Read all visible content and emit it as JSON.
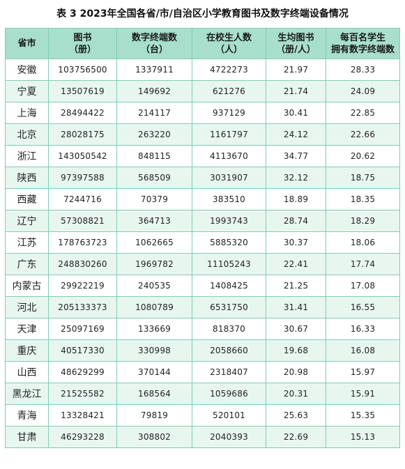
{
  "title": "表 3  2023年全国各省/市/自治区小学教育图书及数字终端设备情况",
  "headers": [
    {
      "line1": "省市",
      "line2": ""
    },
    {
      "line1": "图书",
      "line2": "（册）"
    },
    {
      "line1": "数字终端数",
      "line2": "（台）"
    },
    {
      "line1": "在校生人数",
      "line2": "（人）"
    },
    {
      "line1": "生均图书",
      "line2": "（册/人）"
    },
    {
      "line1": "每百名学生",
      "line2": "拥有数字终端数"
    }
  ],
  "rows": [
    {
      "province": "安徽",
      "books": "103756500",
      "terminals": "1337911",
      "students": "4722273",
      "books_per_student": "21.97",
      "terminals_per_100": "28.33"
    },
    {
      "province": "宁夏",
      "books": "13507619",
      "terminals": "149692",
      "students": "621276",
      "books_per_student": "21.74",
      "terminals_per_100": "24.09"
    },
    {
      "province": "上海",
      "books": "28494422",
      "terminals": "214117",
      "students": "937129",
      "books_per_student": "30.41",
      "terminals_per_100": "22.85"
    },
    {
      "province": "北京",
      "books": "28028175",
      "terminals": "263220",
      "students": "1161797",
      "books_per_student": "24.12",
      "terminals_per_100": "22.66"
    },
    {
      "province": "浙江",
      "books": "143050542",
      "terminals": "848115",
      "students": "4113670",
      "books_per_student": "34.77",
      "terminals_per_100": "20.62"
    },
    {
      "province": "陕西",
      "books": "97397588",
      "terminals": "568509",
      "students": "3031907",
      "books_per_student": "32.12",
      "terminals_per_100": "18.75"
    },
    {
      "province": "西藏",
      "books": "7244716",
      "terminals": "70379",
      "students": "383510",
      "books_per_student": "18.89",
      "terminals_per_100": "18.35"
    },
    {
      "province": "辽宁",
      "books": "57308821",
      "terminals": "364713",
      "students": "1993743",
      "books_per_student": "28.74",
      "terminals_per_100": "18.29"
    },
    {
      "province": "江苏",
      "books": "178763723",
      "terminals": "1062665",
      "students": "5885320",
      "books_per_student": "30.37",
      "terminals_per_100": "18.06"
    },
    {
      "province": "广东",
      "books": "248830260",
      "terminals": "1969782",
      "students": "11105243",
      "books_per_student": "22.41",
      "terminals_per_100": "17.74"
    },
    {
      "province": "内蒙古",
      "books": "29922219",
      "terminals": "240535",
      "students": "1408425",
      "books_per_student": "21.25",
      "terminals_per_100": "17.08"
    },
    {
      "province": "河北",
      "books": "205133373",
      "terminals": "1080789",
      "students": "6531750",
      "books_per_student": "31.41",
      "terminals_per_100": "16.55"
    },
    {
      "province": "天津",
      "books": "25097169",
      "terminals": "133669",
      "students": "818370",
      "books_per_student": "30.67",
      "terminals_per_100": "16.33"
    },
    {
      "province": "重庆",
      "books": "40517330",
      "terminals": "330998",
      "students": "2058660",
      "books_per_student": "19.68",
      "terminals_per_100": "16.08"
    },
    {
      "province": "山西",
      "books": "48629299",
      "terminals": "370144",
      "students": "2318407",
      "books_per_student": "20.98",
      "terminals_per_100": "15.97"
    },
    {
      "province": "黑龙江",
      "books": "21525582",
      "terminals": "168564",
      "students": "1059686",
      "books_per_student": "20.31",
      "terminals_per_100": "15.91"
    },
    {
      "province": "青海",
      "books": "13328421",
      "terminals": "79819",
      "students": "520101",
      "books_per_student": "25.63",
      "terminals_per_100": "15.35"
    },
    {
      "province": "甘肃",
      "books": "46293228",
      "terminals": "308802",
      "students": "2040393",
      "books_per_student": "22.69",
      "terminals_per_100": "15.13"
    }
  ],
  "colors": {
    "header_bg": "#a8dfcc",
    "stripe_bg": "#e8f6f0",
    "border": "#7fcdb4"
  }
}
